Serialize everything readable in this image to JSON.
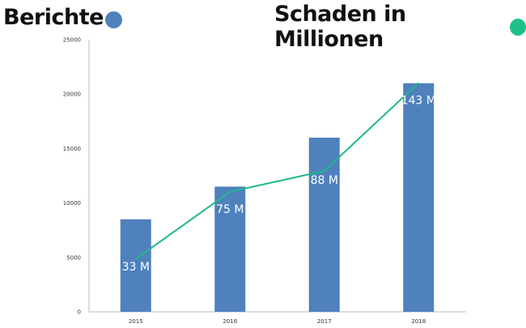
{
  "chart_data": {
    "type": "bar",
    "categories": [
      "2015",
      "2016",
      "2017",
      "2018"
    ],
    "ylim": [
      0,
      25000
    ],
    "yticks": [
      "0",
      "5000",
      "10000",
      "15000",
      "20000",
      "25000"
    ],
    "grid": false,
    "legend_placement": "top",
    "series": [
      {
        "name": "Berichte",
        "type": "bar",
        "color": "#4f81bd",
        "values": [
          8500,
          11500,
          16000,
          21000
        ]
      },
      {
        "name": "Schaden in Millionen",
        "type": "line",
        "color": "#1fb88a",
        "values": [
          33,
          75,
          88,
          143
        ],
        "labels": [
          "33 M",
          "75 M",
          "88 M",
          "143 M"
        ]
      }
    ]
  }
}
